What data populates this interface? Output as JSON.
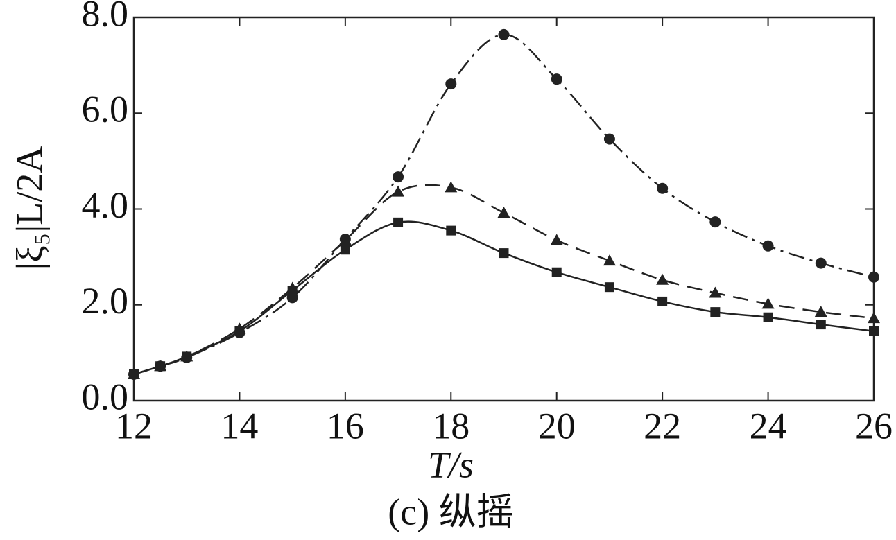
{
  "chart_data": {
    "type": "line",
    "x_label": "T/s",
    "y_label": "|ξ₅|L/2A",
    "caption": "(c) 纵摇",
    "x": [
      12,
      12.5,
      13,
      14,
      15,
      16,
      17,
      18,
      19,
      20,
      21,
      22,
      23,
      24,
      25,
      26
    ],
    "xlim": [
      12,
      26
    ],
    "xticks": [
      12,
      14,
      16,
      18,
      20,
      22,
      24,
      26
    ],
    "ylim": [
      0,
      8
    ],
    "yticks": [
      {
        "value": 0,
        "label": "0.0"
      },
      {
        "value": 2,
        "label": "2.0"
      },
      {
        "value": 4,
        "label": "4.0"
      },
      {
        "value": 6,
        "label": "6.0"
      },
      {
        "value": 8,
        "label": "8.0"
      }
    ],
    "series": [
      {
        "color": "#222222",
        "marker": "square",
        "dash": "solid",
        "values": [
          0.55,
          0.72,
          0.92,
          1.45,
          2.3,
          3.15,
          3.72,
          3.55,
          3.08,
          2.68,
          2.37,
          2.07,
          1.85,
          1.74,
          1.59,
          1.45
        ]
      },
      {
        "color": "#222222",
        "marker": "triangle",
        "dash": "dashed",
        "values": [
          0.55,
          0.72,
          0.92,
          1.5,
          2.35,
          3.35,
          4.36,
          4.45,
          3.92,
          3.35,
          2.92,
          2.52,
          2.25,
          2.02,
          1.85,
          1.72
        ]
      },
      {
        "color": "#222222",
        "marker": "circle",
        "dash": "dashdot",
        "values": [
          0.55,
          0.72,
          0.9,
          1.42,
          2.15,
          3.37,
          4.67,
          6.61,
          7.64,
          6.71,
          5.46,
          4.43,
          3.73,
          3.23,
          2.87,
          2.58
        ]
      }
    ]
  }
}
